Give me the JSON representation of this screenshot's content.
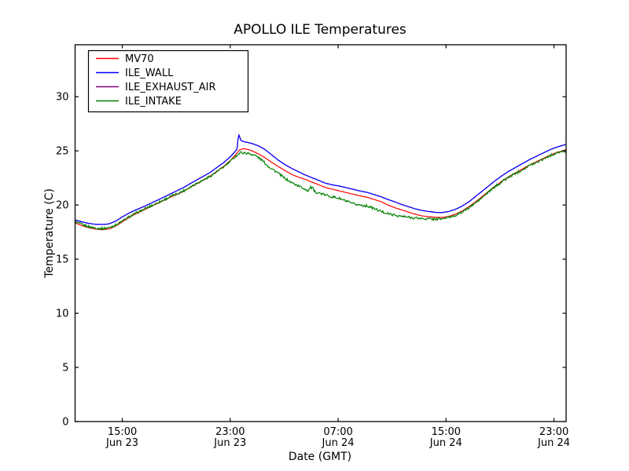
{
  "chart_data": {
    "type": "line",
    "title": "APOLLO ILE Temperatures",
    "xlabel": "Date (GMT)",
    "ylabel": "Temperature (C)",
    "grid": false,
    "legend_position": "upper left",
    "x_unit": "hours elapsed since ~11:30 Jun 23 (GMT)",
    "xlim": [
      0,
      36.4
    ],
    "ylim": [
      0,
      34.8
    ],
    "yticks": [
      0,
      5,
      10,
      15,
      20,
      25,
      30
    ],
    "xticks": [
      {
        "t": 3.5,
        "time": "15:00",
        "date": "Jun 23"
      },
      {
        "t": 11.5,
        "time": "23:00",
        "date": "Jun 23"
      },
      {
        "t": 19.5,
        "time": "07:00",
        "date": "Jun 24"
      },
      {
        "t": 27.5,
        "time": "15:00",
        "date": "Jun 24"
      },
      {
        "t": 35.5,
        "time": "23:00",
        "date": "Jun 24"
      }
    ],
    "series": [
      {
        "name": "MV70",
        "color": "#ff0000",
        "zorder": 2,
        "noise_amplitude": 0,
        "points": [
          [
            0,
            18.35
          ],
          [
            0.5,
            18.1
          ],
          [
            1.0,
            17.9
          ],
          [
            1.5,
            17.78
          ],
          [
            2.0,
            17.72
          ],
          [
            2.5,
            17.78
          ],
          [
            3.0,
            18.05
          ],
          [
            3.5,
            18.45
          ],
          [
            4.0,
            18.85
          ],
          [
            4.6,
            19.25
          ],
          [
            5.1,
            19.55
          ],
          [
            5.6,
            19.85
          ],
          [
            6.2,
            20.2
          ],
          [
            6.7,
            20.5
          ],
          [
            7.2,
            20.8
          ],
          [
            7.6,
            21.0
          ],
          [
            8.1,
            21.3
          ],
          [
            8.5,
            21.6
          ],
          [
            9.0,
            21.95
          ],
          [
            9.5,
            22.3
          ],
          [
            10.0,
            22.65
          ],
          [
            10.5,
            23.1
          ],
          [
            11.0,
            23.55
          ],
          [
            11.5,
            24.1
          ],
          [
            11.8,
            24.5
          ],
          [
            12.0,
            24.8
          ],
          [
            12.2,
            25.1
          ],
          [
            12.5,
            25.2
          ],
          [
            12.9,
            25.1
          ],
          [
            13.3,
            24.9
          ],
          [
            13.7,
            24.65
          ],
          [
            14.1,
            24.35
          ],
          [
            14.5,
            24.0
          ],
          [
            15.0,
            23.6
          ],
          [
            15.6,
            23.15
          ],
          [
            16.1,
            22.8
          ],
          [
            16.6,
            22.55
          ],
          [
            17.1,
            22.35
          ],
          [
            17.6,
            22.1
          ],
          [
            18.1,
            21.85
          ],
          [
            18.6,
            21.6
          ],
          [
            19.1,
            21.45
          ],
          [
            19.6,
            21.3
          ],
          [
            20.1,
            21.15
          ],
          [
            20.6,
            21.0
          ],
          [
            21.1,
            20.85
          ],
          [
            21.7,
            20.7
          ],
          [
            22.2,
            20.5
          ],
          [
            22.7,
            20.3
          ],
          [
            23.2,
            20.0
          ],
          [
            23.7,
            19.75
          ],
          [
            24.2,
            19.55
          ],
          [
            24.7,
            19.35
          ],
          [
            25.2,
            19.15
          ],
          [
            25.7,
            19.0
          ],
          [
            26.2,
            18.92
          ],
          [
            26.7,
            18.87
          ],
          [
            27.2,
            18.85
          ],
          [
            27.7,
            18.95
          ],
          [
            28.2,
            19.15
          ],
          [
            28.7,
            19.45
          ],
          [
            29.2,
            19.85
          ],
          [
            29.7,
            20.3
          ],
          [
            30.2,
            20.8
          ],
          [
            30.7,
            21.3
          ],
          [
            31.2,
            21.8
          ],
          [
            31.7,
            22.25
          ],
          [
            32.2,
            22.65
          ],
          [
            32.7,
            23.0
          ],
          [
            33.2,
            23.35
          ],
          [
            33.7,
            23.7
          ],
          [
            34.2,
            24.0
          ],
          [
            34.7,
            24.3
          ],
          [
            35.2,
            24.6
          ],
          [
            35.6,
            24.8
          ],
          [
            36.0,
            24.95
          ],
          [
            36.4,
            25.1
          ]
        ]
      },
      {
        "name": "ILE_WALL",
        "color": "#0000ff",
        "zorder": 4,
        "noise_amplitude": 0,
        "points": [
          [
            0,
            18.62
          ],
          [
            0.5,
            18.45
          ],
          [
            1.0,
            18.3
          ],
          [
            1.5,
            18.22
          ],
          [
            2.0,
            18.2
          ],
          [
            2.5,
            18.25
          ],
          [
            3.0,
            18.5
          ],
          [
            3.5,
            18.9
          ],
          [
            4.0,
            19.25
          ],
          [
            4.6,
            19.6
          ],
          [
            5.1,
            19.85
          ],
          [
            5.6,
            20.15
          ],
          [
            6.2,
            20.5
          ],
          [
            6.7,
            20.8
          ],
          [
            7.2,
            21.1
          ],
          [
            7.6,
            21.35
          ],
          [
            8.1,
            21.65
          ],
          [
            8.5,
            21.95
          ],
          [
            9.0,
            22.3
          ],
          [
            9.5,
            22.65
          ],
          [
            10.0,
            23.0
          ],
          [
            10.5,
            23.45
          ],
          [
            11.0,
            23.9
          ],
          [
            11.5,
            24.45
          ],
          [
            11.8,
            24.85
          ],
          [
            12.0,
            25.15
          ],
          [
            12.08,
            26.1
          ],
          [
            12.15,
            26.45
          ],
          [
            12.3,
            25.95
          ],
          [
            12.5,
            25.85
          ],
          [
            12.9,
            25.75
          ],
          [
            13.3,
            25.6
          ],
          [
            13.7,
            25.4
          ],
          [
            14.1,
            25.1
          ],
          [
            14.5,
            24.7
          ],
          [
            15.0,
            24.2
          ],
          [
            15.6,
            23.7
          ],
          [
            16.1,
            23.35
          ],
          [
            16.6,
            23.05
          ],
          [
            17.1,
            22.75
          ],
          [
            17.6,
            22.5
          ],
          [
            18.1,
            22.25
          ],
          [
            18.6,
            22.0
          ],
          [
            19.1,
            21.85
          ],
          [
            19.6,
            21.75
          ],
          [
            20.1,
            21.6
          ],
          [
            20.6,
            21.45
          ],
          [
            21.1,
            21.3
          ],
          [
            21.7,
            21.15
          ],
          [
            22.2,
            20.95
          ],
          [
            22.7,
            20.75
          ],
          [
            23.2,
            20.5
          ],
          [
            23.7,
            20.3
          ],
          [
            24.2,
            20.05
          ],
          [
            24.7,
            19.85
          ],
          [
            25.2,
            19.65
          ],
          [
            25.7,
            19.5
          ],
          [
            26.2,
            19.4
          ],
          [
            26.7,
            19.32
          ],
          [
            27.2,
            19.3
          ],
          [
            27.7,
            19.4
          ],
          [
            28.2,
            19.6
          ],
          [
            28.7,
            19.9
          ],
          [
            29.2,
            20.3
          ],
          [
            29.7,
            20.8
          ],
          [
            30.2,
            21.3
          ],
          [
            30.7,
            21.8
          ],
          [
            31.2,
            22.3
          ],
          [
            31.7,
            22.75
          ],
          [
            32.2,
            23.15
          ],
          [
            32.7,
            23.5
          ],
          [
            33.2,
            23.85
          ],
          [
            33.7,
            24.2
          ],
          [
            34.2,
            24.5
          ],
          [
            34.7,
            24.8
          ],
          [
            35.2,
            25.1
          ],
          [
            35.6,
            25.3
          ],
          [
            36.0,
            25.45
          ],
          [
            36.4,
            25.6
          ]
        ]
      },
      {
        "name": "ILE_EXHAUST_AIR",
        "color": "#800080",
        "zorder": 3,
        "noise_amplitude": 0,
        "coincides_with": "ILE_WALL",
        "note": "not separately visible; lies exactly under ILE_WALL trace",
        "points": []
      },
      {
        "name": "ILE_INTAKE",
        "color": "#008000",
        "zorder": 5,
        "noise_amplitude": 0.11,
        "points": [
          [
            0,
            18.45
          ],
          [
            0.5,
            18.2
          ],
          [
            1.0,
            18.0
          ],
          [
            1.5,
            17.88
          ],
          [
            2.0,
            17.82
          ],
          [
            2.5,
            17.9
          ],
          [
            3.0,
            18.15
          ],
          [
            3.5,
            18.5
          ],
          [
            4.0,
            18.9
          ],
          [
            4.6,
            19.3
          ],
          [
            5.1,
            19.6
          ],
          [
            5.6,
            19.9
          ],
          [
            6.2,
            20.25
          ],
          [
            6.7,
            20.55
          ],
          [
            7.2,
            20.85
          ],
          [
            7.6,
            21.05
          ],
          [
            8.1,
            21.35
          ],
          [
            8.5,
            21.65
          ],
          [
            9.0,
            22.0
          ],
          [
            9.5,
            22.3
          ],
          [
            10.0,
            22.65
          ],
          [
            10.5,
            23.05
          ],
          [
            11.0,
            23.5
          ],
          [
            11.5,
            24.0
          ],
          [
            11.8,
            24.4
          ],
          [
            12.0,
            24.6
          ],
          [
            12.3,
            24.85
          ],
          [
            12.9,
            24.75
          ],
          [
            13.4,
            24.55
          ],
          [
            13.9,
            24.1
          ],
          [
            14.3,
            23.6
          ],
          [
            15.0,
            23.0
          ],
          [
            15.5,
            22.5
          ],
          [
            16.0,
            22.1
          ],
          [
            16.5,
            21.8
          ],
          [
            17.0,
            21.5
          ],
          [
            17.3,
            21.3
          ],
          [
            17.42,
            21.62
          ],
          [
            17.62,
            21.55
          ],
          [
            17.72,
            21.25
          ],
          [
            18.1,
            21.1
          ],
          [
            18.6,
            20.9
          ],
          [
            19.1,
            20.75
          ],
          [
            19.6,
            20.6
          ],
          [
            20.1,
            20.35
          ],
          [
            20.6,
            20.1
          ],
          [
            21.1,
            20.0
          ],
          [
            21.7,
            19.9
          ],
          [
            22.2,
            19.65
          ],
          [
            22.7,
            19.4
          ],
          [
            23.2,
            19.2
          ],
          [
            23.7,
            19.05
          ],
          [
            24.2,
            18.95
          ],
          [
            24.7,
            18.87
          ],
          [
            25.2,
            18.8
          ],
          [
            25.7,
            18.75
          ],
          [
            26.2,
            18.72
          ],
          [
            26.7,
            18.7
          ],
          [
            27.2,
            18.72
          ],
          [
            27.7,
            18.85
          ],
          [
            28.2,
            19.05
          ],
          [
            28.7,
            19.35
          ],
          [
            29.2,
            19.75
          ],
          [
            29.7,
            20.2
          ],
          [
            30.2,
            20.7
          ],
          [
            30.7,
            21.25
          ],
          [
            31.2,
            21.75
          ],
          [
            31.7,
            22.2
          ],
          [
            32.2,
            22.6
          ],
          [
            32.7,
            22.95
          ],
          [
            33.2,
            23.3
          ],
          [
            33.7,
            23.65
          ],
          [
            34.2,
            23.95
          ],
          [
            34.7,
            24.25
          ],
          [
            35.2,
            24.55
          ],
          [
            35.6,
            24.75
          ],
          [
            36.0,
            24.9
          ],
          [
            36.4,
            25.0
          ]
        ]
      }
    ],
    "colors": {
      "axes": "#000000",
      "background": "#ffffff",
      "mv70": "#ff0000",
      "ile_wall": "#0000ff",
      "ile_exhaust_air": "#800080",
      "ile_intake": "#008000"
    }
  }
}
